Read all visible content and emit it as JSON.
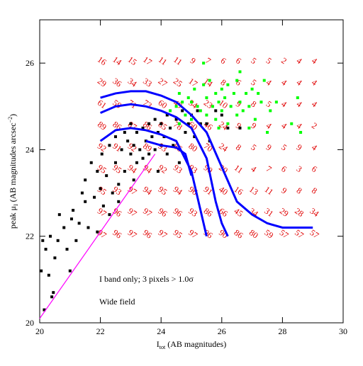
{
  "chart_data": {
    "type": "scatter",
    "xlim": [
      20,
      30
    ],
    "ylim": [
      20,
      27
    ],
    "xticks": [
      20,
      22,
      24,
      26,
      28,
      30
    ],
    "yticks": [
      20,
      22,
      24,
      26
    ],
    "x_label": {
      "main": "I",
      "sub": "tot",
      "rest": " (AB magnitudes)"
    },
    "y_label": {
      "main": "peak μ",
      "sub": "I",
      "rest": "  (AB magnitudes arcsec",
      "sup": "−2",
      "end": ")"
    },
    "annotations": [
      "I band only; 3 pixels > 1.0σ",
      "Wide field"
    ],
    "series": [
      {
        "color": "#000000",
        "points": [
          [
            20.05,
            21.2
          ],
          [
            20.1,
            21.9
          ],
          [
            20.15,
            20.3
          ],
          [
            20.2,
            21.7
          ],
          [
            20.3,
            21.1
          ],
          [
            20.35,
            22.0
          ],
          [
            20.4,
            20.6
          ],
          [
            20.45,
            20.7
          ],
          [
            20.5,
            21.5
          ],
          [
            20.6,
            21.9
          ],
          [
            20.65,
            22.5
          ],
          [
            20.8,
            22.2
          ],
          [
            20.9,
            21.7
          ],
          [
            21.0,
            21.2
          ],
          [
            21.05,
            22.4
          ],
          [
            21.1,
            22.6
          ],
          [
            21.2,
            21.9
          ],
          [
            21.3,
            22.3
          ],
          [
            21.4,
            23.0
          ],
          [
            21.5,
            22.8
          ],
          [
            21.5,
            23.3
          ],
          [
            21.6,
            22.2
          ],
          [
            21.7,
            23.7
          ],
          [
            21.8,
            22.9
          ],
          [
            21.9,
            23.5
          ],
          [
            22.0,
            23.1
          ],
          [
            22.05,
            23.9
          ],
          [
            22.1,
            22.7
          ],
          [
            22.2,
            23.4
          ],
          [
            22.3,
            24.1
          ],
          [
            22.4,
            23.0
          ],
          [
            22.5,
            23.7
          ],
          [
            22.5,
            24.3
          ],
          [
            22.6,
            23.2
          ],
          [
            22.7,
            24.0
          ],
          [
            22.8,
            24.4
          ],
          [
            22.8,
            23.5
          ],
          [
            22.9,
            24.2
          ],
          [
            23.0,
            23.9
          ],
          [
            23.0,
            24.6
          ],
          [
            23.1,
            24.1
          ],
          [
            23.2,
            23.7
          ],
          [
            23.2,
            24.4
          ],
          [
            23.3,
            24.0
          ],
          [
            23.4,
            24.5
          ],
          [
            23.4,
            23.8
          ],
          [
            23.5,
            24.2
          ],
          [
            23.6,
            24.6
          ],
          [
            23.6,
            23.9
          ],
          [
            23.7,
            24.3
          ],
          [
            23.8,
            24.0
          ],
          [
            23.8,
            24.7
          ],
          [
            23.9,
            24.4
          ],
          [
            24.0,
            24.1
          ],
          [
            24.0,
            24.6
          ],
          [
            24.1,
            24.3
          ],
          [
            24.2,
            24.8
          ],
          [
            24.2,
            23.9
          ],
          [
            24.3,
            24.5
          ],
          [
            24.4,
            24.1
          ],
          [
            24.5,
            24.7
          ],
          [
            24.6,
            23.7
          ],
          [
            24.7,
            24.9
          ],
          [
            24.8,
            24.4
          ],
          [
            24.9,
            24.6
          ],
          [
            25.0,
            24.8
          ],
          [
            25.1,
            24.3
          ],
          [
            25.2,
            24.9
          ],
          [
            25.3,
            24.6
          ],
          [
            25.5,
            24.6
          ],
          [
            25.6,
            24.2
          ],
          [
            25.8,
            24.9
          ],
          [
            26.0,
            24.8
          ],
          [
            26.2,
            24.5
          ],
          [
            26.6,
            24.5
          ],
          [
            22.3,
            22.5
          ],
          [
            21.9,
            22.1
          ],
          [
            22.6,
            22.8
          ],
          [
            23.1,
            23.3
          ],
          [
            23.9,
            23.5
          ]
        ]
      },
      {
        "color": "#00ff00",
        "points": [
          [
            24.3,
            24.9
          ],
          [
            24.5,
            25.0
          ],
          [
            24.6,
            24.6
          ],
          [
            24.7,
            25.1
          ],
          [
            24.8,
            24.8
          ],
          [
            24.9,
            25.2
          ],
          [
            25.0,
            24.7
          ],
          [
            25.1,
            25.4
          ],
          [
            25.2,
            25.0
          ],
          [
            25.3,
            24.9
          ],
          [
            25.4,
            25.5
          ],
          [
            25.5,
            25.2
          ],
          [
            25.5,
            24.8
          ],
          [
            25.6,
            25.6
          ],
          [
            25.7,
            25.0
          ],
          [
            25.8,
            25.3
          ],
          [
            25.8,
            24.7
          ],
          [
            25.9,
            25.1
          ],
          [
            26.0,
            25.4
          ],
          [
            26.0,
            24.9
          ],
          [
            26.1,
            25.2
          ],
          [
            26.2,
            24.6
          ],
          [
            26.2,
            25.5
          ],
          [
            26.3,
            25.0
          ],
          [
            26.4,
            25.3
          ],
          [
            26.5,
            24.8
          ],
          [
            26.5,
            25.6
          ],
          [
            26.6,
            25.1
          ],
          [
            26.7,
            24.9
          ],
          [
            26.8,
            25.3
          ],
          [
            26.9,
            25.0
          ],
          [
            27.0,
            25.4
          ],
          [
            27.1,
            24.7
          ],
          [
            27.3,
            25.1
          ],
          [
            27.4,
            25.6
          ],
          [
            27.6,
            24.9
          ],
          [
            27.8,
            25.1
          ],
          [
            28.3,
            24.6
          ],
          [
            28.6,
            24.4
          ],
          [
            27.5,
            24.4
          ],
          [
            26.6,
            25.8
          ],
          [
            25.4,
            26.0
          ],
          [
            26.9,
            24.5
          ],
          [
            27.2,
            25.3
          ],
          [
            28.5,
            25.2
          ],
          [
            24.6,
            25.3
          ],
          [
            25.0,
            25.1
          ],
          [
            25.9,
            24.5
          ]
        ]
      }
    ],
    "curves": [
      {
        "color": "#0000ff",
        "points": [
          [
            22,
            25.2
          ],
          [
            22.5,
            25.3
          ],
          [
            23,
            25.35
          ],
          [
            23.5,
            25.35
          ],
          [
            24,
            25.25
          ],
          [
            24.5,
            25.1
          ],
          [
            25,
            24.8
          ],
          [
            25.5,
            24.4
          ],
          [
            26,
            23.6
          ],
          [
            26.5,
            22.8
          ],
          [
            27,
            22.5
          ],
          [
            27.5,
            22.3
          ],
          [
            28,
            22.2
          ],
          [
            29,
            22.2
          ]
        ]
      },
      {
        "color": "#0000ff",
        "points": [
          [
            22,
            24.85
          ],
          [
            22.5,
            25.0
          ],
          [
            23,
            25.05
          ],
          [
            23.5,
            25.0
          ],
          [
            24,
            24.9
          ],
          [
            24.5,
            24.75
          ],
          [
            25,
            24.5
          ],
          [
            25.5,
            23.8
          ],
          [
            25.8,
            22.8
          ],
          [
            26.0,
            22.3
          ],
          [
            26.2,
            22.0
          ]
        ]
      },
      {
        "color": "#0000ff",
        "points": [
          [
            22,
            24.2
          ],
          [
            22.5,
            24.45
          ],
          [
            23,
            24.5
          ],
          [
            23.5,
            24.45
          ],
          [
            24,
            24.35
          ],
          [
            24.5,
            24.2
          ],
          [
            25,
            23.5
          ],
          [
            25.3,
            22.6
          ],
          [
            25.5,
            22.0
          ]
        ]
      },
      {
        "color": "#0000ff",
        "points": [
          [
            23.5,
            24.2
          ],
          [
            24,
            24.1
          ],
          [
            24.5,
            24.05
          ],
          [
            24.8,
            23.9
          ],
          [
            25,
            23.4
          ]
        ]
      },
      {
        "color": "#ff00ff",
        "points": [
          [
            20,
            20.1
          ],
          [
            23.8,
            23.9
          ]
        ]
      }
    ],
    "grid_labels": {
      "color": "#e00000",
      "x": [
        22,
        22.5,
        23,
        23.5,
        24,
        24.5,
        25,
        25.5,
        26,
        26.5,
        27,
        27.5,
        28,
        28.5,
        29
      ],
      "y": [
        26,
        25.5,
        25,
        24.5,
        24,
        23.5,
        23,
        22.5,
        22
      ],
      "values": [
        [
          16,
          14,
          15,
          17,
          11,
          11,
          9,
          7,
          6,
          6,
          5,
          5,
          2,
          4,
          4
        ],
        [
          29,
          36,
          34,
          33,
          27,
          25,
          17,
          14,
          8,
          6,
          5,
          4,
          4,
          4,
          4
        ],
        [
          61,
          59,
          71,
          73,
          60,
          49,
          34,
          23,
          10,
          9,
          8,
          5,
          4,
          4,
          4
        ],
        [
          89,
          86,
          87,
          86,
          85,
          78,
          60,
          46,
          24,
          9,
          9,
          4,
          4,
          4,
          2
        ],
        [
          92,
          91,
          92,
          89,
          93,
          86,
          80,
          70,
          24,
          8,
          5,
          9,
          5,
          9,
          4
        ],
        [
          95,
          95,
          94,
          94,
          92,
          93,
          93,
          90,
          20,
          11,
          4,
          7,
          6,
          3,
          6
        ],
        [
          95,
          93,
          97,
          94,
          95,
          94,
          96,
          91,
          40,
          16,
          13,
          11,
          9,
          8,
          8
        ],
        [
          97,
          96,
          97,
          97,
          96,
          96,
          93,
          86,
          66,
          45,
          34,
          31,
          29,
          28,
          34
        ],
        [
          97,
          96,
          97,
          96,
          97,
          95,
          97,
          96,
          90,
          86,
          80,
          59,
          57,
          57,
          57
        ]
      ]
    }
  }
}
